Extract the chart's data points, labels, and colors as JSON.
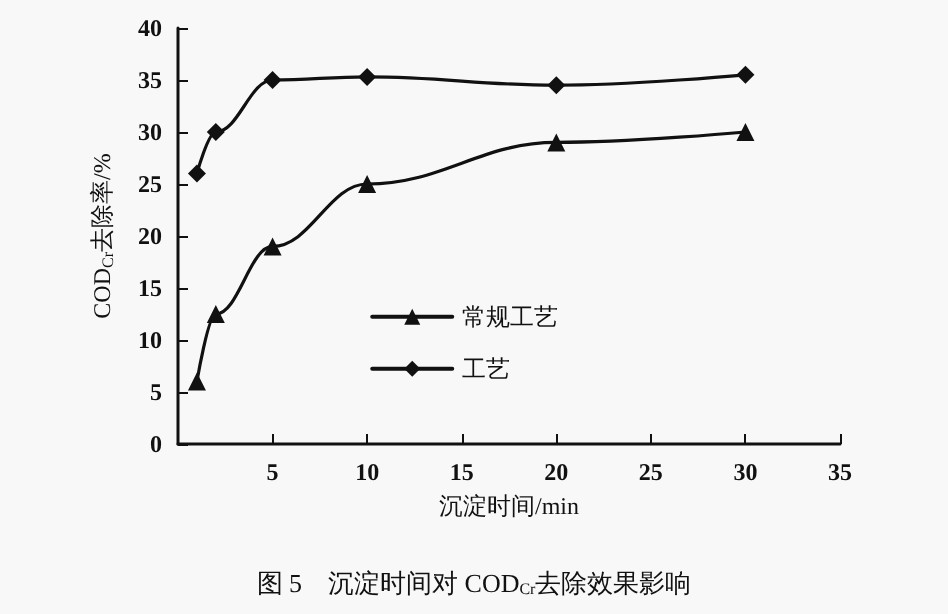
{
  "chart_data": {
    "type": "line",
    "title": "图 5　沉淀时间对 COD$_{Cr}$去除效果影响",
    "xlabel": "沉淀时间/min",
    "ylabel": "COD$_{Cr}$去除率/%",
    "x": [
      1,
      2,
      5,
      10,
      20,
      30
    ],
    "series": [
      {
        "name": "常规工艺",
        "color": "#111111",
        "marker": "triangle",
        "values": [
          6,
          12.5,
          19,
          25,
          29,
          30
        ]
      },
      {
        "name": "工艺",
        "color": "#111111",
        "marker": "diamond",
        "values": [
          26,
          30,
          35,
          35.3,
          34.5,
          35.5
        ]
      }
    ],
    "xlim": [
      0,
      35
    ],
    "xticks": [
      5,
      10,
      15,
      20,
      25,
      30,
      35
    ],
    "ylim": [
      0,
      40
    ],
    "yticks": [
      0,
      5,
      10,
      15,
      20,
      25,
      30,
      35,
      40
    ],
    "grid": false,
    "legend": "center",
    "line_style": "solid"
  }
}
